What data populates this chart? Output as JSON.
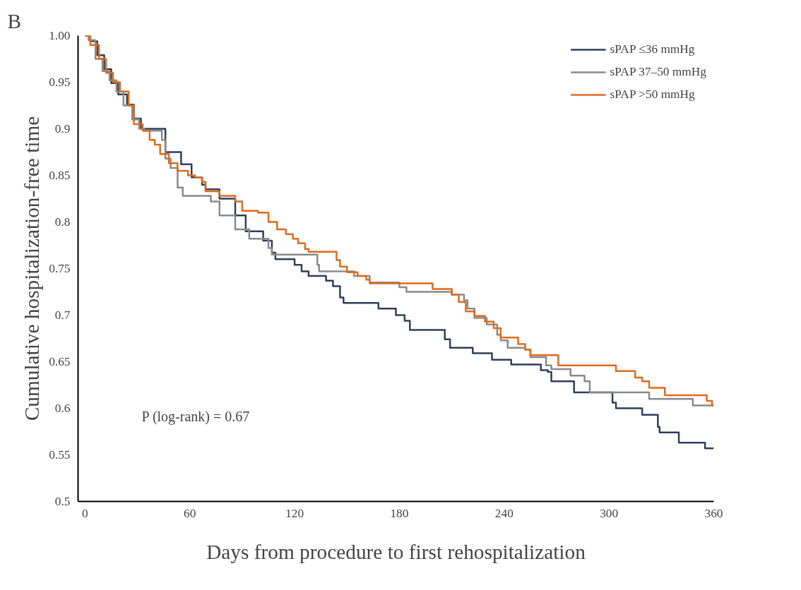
{
  "chart_data": {
    "type": "step",
    "title": "B",
    "xlabel": "Days from procedure to first rehospitalization",
    "ylabel": "Cumulative hospitalization-free time",
    "xlim": [
      -4,
      360
    ],
    "xticks": [
      0,
      60,
      120,
      180,
      240,
      300,
      360
    ],
    "ylim": [
      0.5,
      1.0
    ],
    "yticks": [
      {
        "value": 1.0,
        "label": "1.00"
      },
      0.95,
      0.9,
      0.85,
      0.8,
      0.75,
      0.7,
      0.65,
      0.6,
      0.55,
      0.5
    ],
    "grid": false,
    "legend": "top right",
    "marker": "none",
    "line_style": "solid",
    "annotations": [
      "P (log-rank) = 0.67"
    ],
    "series": [
      {
        "name": "sPAP ≤36 mmHg",
        "color": "#2e3f5c",
        "x": [
          0,
          3,
          7,
          11,
          15,
          19,
          24,
          28,
          32,
          46,
          55,
          61,
          67,
          69,
          77,
          86,
          92,
          102,
          107,
          109,
          120,
          124,
          128,
          138,
          142,
          146,
          148,
          168,
          178,
          183,
          186,
          206,
          209,
          222,
          233,
          244,
          261,
          265,
          267,
          280,
          302,
          304,
          319,
          328,
          329,
          340,
          355,
          360
        ],
        "values": [
          1.0,
          0.994,
          0.979,
          0.964,
          0.949,
          0.937,
          0.926,
          0.911,
          0.9,
          0.875,
          0.862,
          0.848,
          0.84,
          0.835,
          0.825,
          0.807,
          0.79,
          0.78,
          0.767,
          0.76,
          0.754,
          0.747,
          0.742,
          0.737,
          0.731,
          0.719,
          0.713,
          0.707,
          0.7,
          0.694,
          0.684,
          0.674,
          0.665,
          0.659,
          0.652,
          0.647,
          0.641,
          0.639,
          0.629,
          0.617,
          0.606,
          0.6,
          0.593,
          0.58,
          0.574,
          0.563,
          0.557,
          0.557
        ]
      },
      {
        "name": "sPAP 37–50 mmHg",
        "color": "#8a8a8a",
        "x": [
          0,
          2,
          6,
          10,
          14,
          18,
          22,
          27,
          31,
          34,
          44,
          46,
          49,
          53,
          56,
          72,
          77,
          86,
          94,
          105,
          107,
          133,
          134,
          154,
          163,
          180,
          184,
          210,
          217,
          219,
          223,
          230,
          236,
          238,
          242,
          252,
          255,
          264,
          267,
          278,
          286,
          289,
          323,
          348,
          360
        ],
        "values": [
          1.0,
          0.995,
          0.975,
          0.962,
          0.952,
          0.94,
          0.925,
          0.91,
          0.9,
          0.898,
          0.888,
          0.868,
          0.858,
          0.837,
          0.828,
          0.822,
          0.807,
          0.792,
          0.782,
          0.772,
          0.765,
          0.754,
          0.747,
          0.742,
          0.735,
          0.73,
          0.725,
          0.722,
          0.716,
          0.707,
          0.697,
          0.69,
          0.679,
          0.673,
          0.665,
          0.663,
          0.655,
          0.646,
          0.642,
          0.635,
          0.629,
          0.617,
          0.61,
          0.603,
          0.603
        ]
      },
      {
        "name": "sPAP >50 mmHg",
        "color": "#e06a1c",
        "x": [
          0,
          3,
          8,
          12,
          16,
          20,
          25,
          28,
          33,
          37,
          40,
          43,
          48,
          53,
          59,
          63,
          67,
          69,
          77,
          86,
          90,
          99,
          105,
          110,
          115,
          119,
          122,
          126,
          128,
          144,
          146,
          150,
          156,
          161,
          163,
          199,
          210,
          214,
          218,
          223,
          229,
          234,
          238,
          248,
          252,
          255,
          271,
          304,
          315,
          319,
          323,
          332,
          356,
          359,
          360
        ],
        "values": [
          1.0,
          0.99,
          0.975,
          0.96,
          0.95,
          0.94,
          0.925,
          0.905,
          0.898,
          0.888,
          0.883,
          0.873,
          0.863,
          0.855,
          0.85,
          0.848,
          0.843,
          0.833,
          0.828,
          0.822,
          0.812,
          0.81,
          0.8,
          0.792,
          0.787,
          0.782,
          0.777,
          0.771,
          0.768,
          0.759,
          0.752,
          0.746,
          0.742,
          0.738,
          0.734,
          0.728,
          0.722,
          0.714,
          0.704,
          0.699,
          0.693,
          0.686,
          0.676,
          0.669,
          0.663,
          0.657,
          0.646,
          0.64,
          0.633,
          0.629,
          0.622,
          0.614,
          0.608,
          0.603,
          0.603
        ]
      }
    ]
  }
}
